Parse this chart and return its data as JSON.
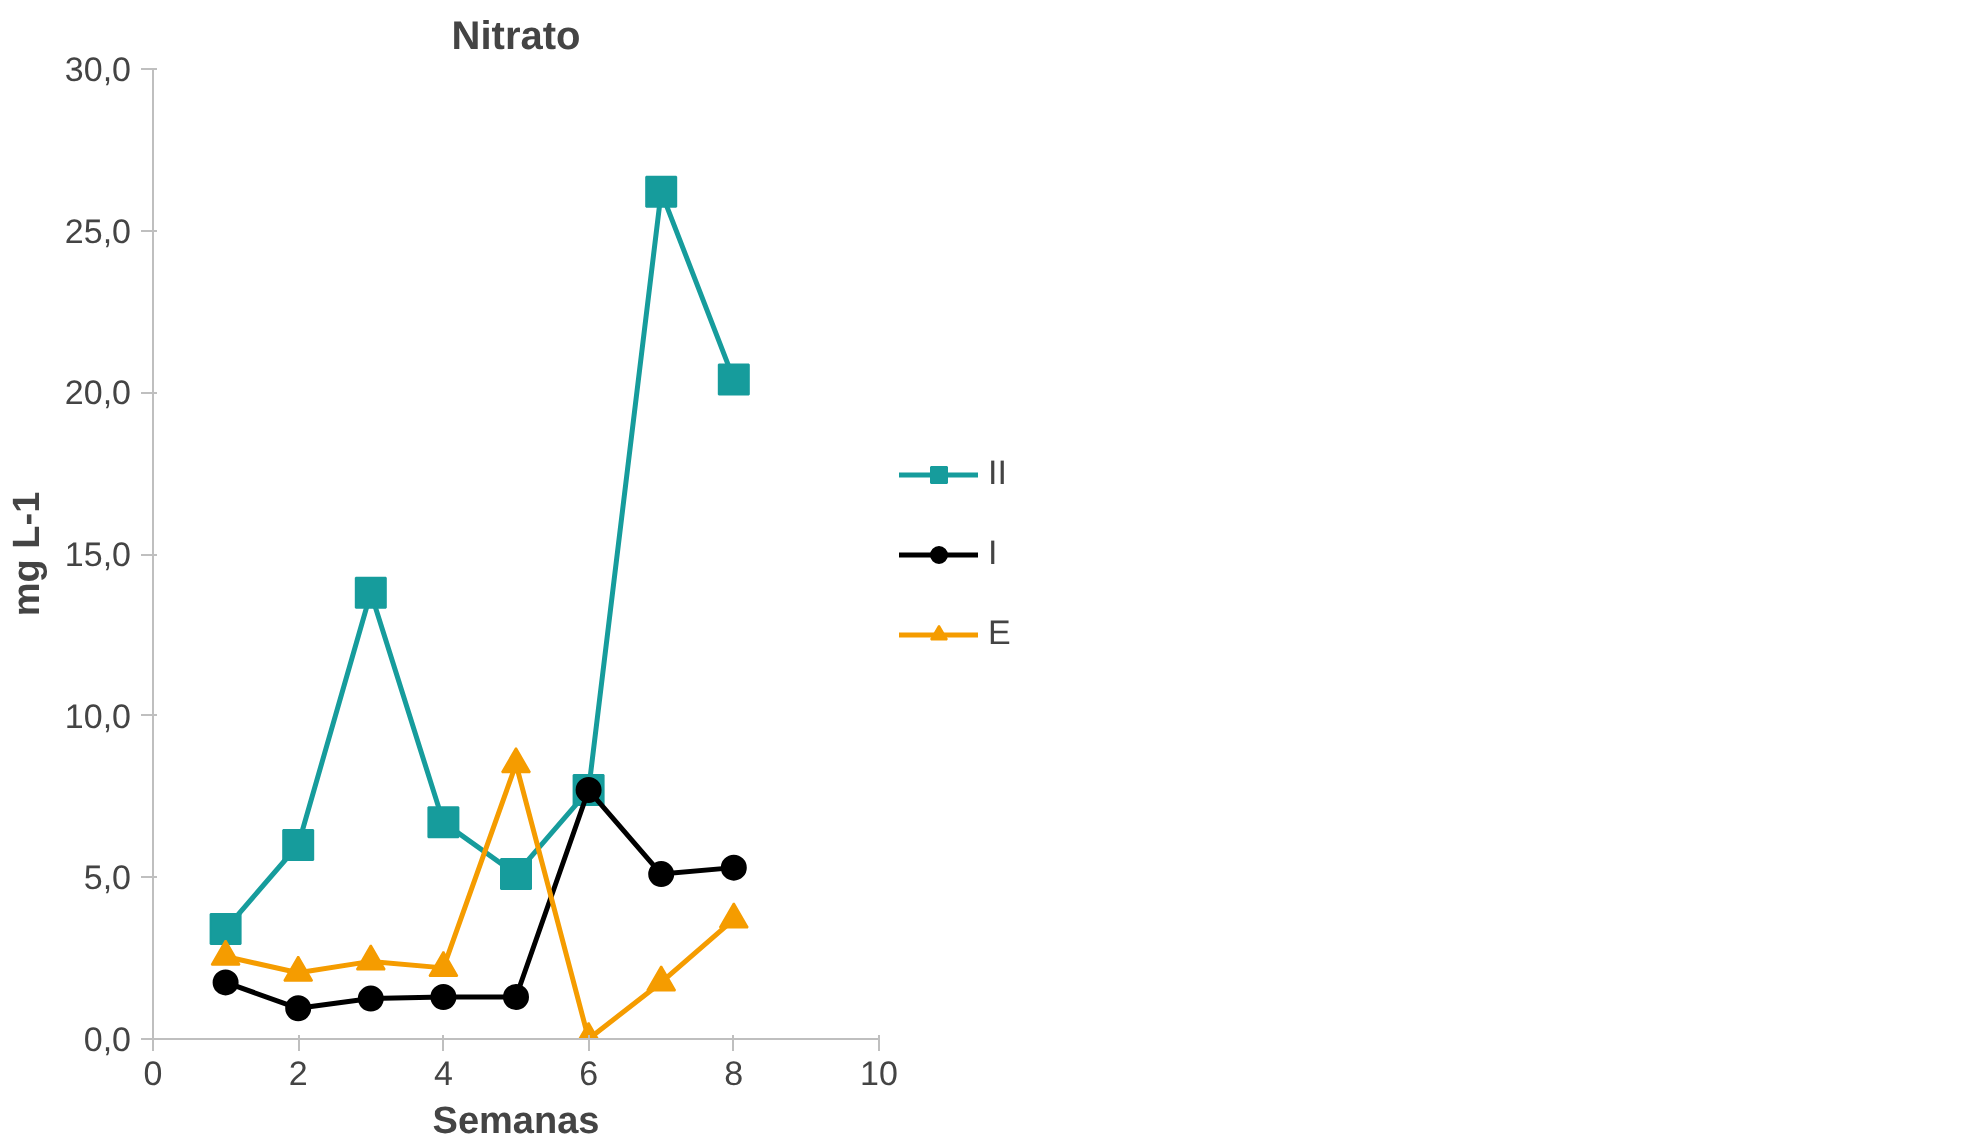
{
  "chart_data": {
    "type": "line",
    "title": "Nitrato",
    "xlabel": "Semanas",
    "ylabel": "mg L-1",
    "x": [
      1,
      2,
      3,
      4,
      5,
      6,
      7,
      8
    ],
    "series": [
      {
        "name": "II",
        "color": "#169c9c",
        "marker": "square",
        "values": [
          3.4,
          6.0,
          13.8,
          6.7,
          5.1,
          7.7,
          26.2,
          20.4
        ]
      },
      {
        "name": "I",
        "color": "#000000",
        "marker": "circle",
        "values": [
          1.75,
          0.95,
          1.25,
          1.3,
          1.3,
          7.7,
          5.1,
          5.3
        ]
      },
      {
        "name": "E",
        "color": "#f59c00",
        "marker": "triangle",
        "values": [
          2.55,
          2.05,
          2.4,
          2.2,
          8.5,
          0.0,
          1.75,
          3.7
        ]
      }
    ],
    "xlim": [
      0,
      10
    ],
    "xticks": [
      0,
      2,
      4,
      6,
      8,
      10
    ],
    "ylim": [
      0,
      30
    ],
    "yticks": [
      {
        "value": 0,
        "label": "0,0"
      },
      {
        "value": 5,
        "label": "5,0"
      },
      {
        "value": 10,
        "label": "10,0"
      },
      {
        "value": 15,
        "label": "15,0"
      },
      {
        "value": 20,
        "label": "20,0"
      },
      {
        "value": 25,
        "label": "25,0"
      },
      {
        "value": 30,
        "label": "30,0"
      }
    ],
    "grid": false,
    "legend": "right",
    "line_style": "solid"
  }
}
